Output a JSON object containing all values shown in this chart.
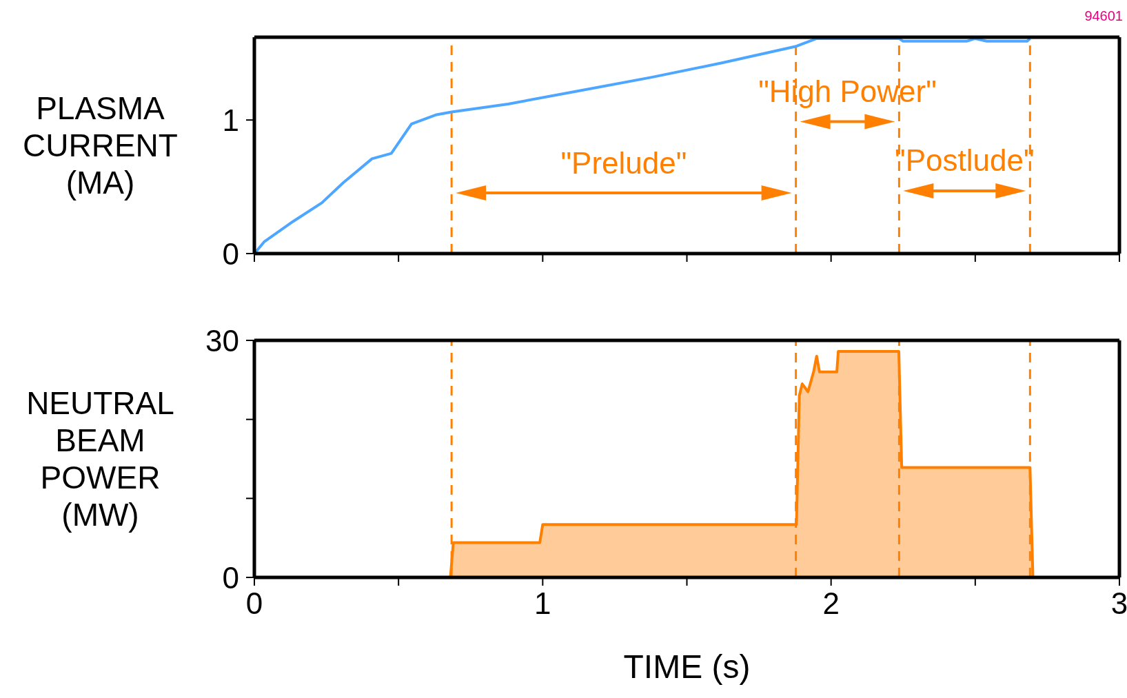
{
  "chart_data": [
    {
      "type": "line",
      "ylabel": "PLASMA CURRENT (MA)",
      "xlim": [
        0,
        3
      ],
      "xticks": [
        0,
        {
          "value": 0.5,
          "label": null
        },
        1,
        {
          "value": 1.5,
          "label": null
        },
        2,
        {
          "value": 2.5,
          "label": null
        },
        3
      ],
      "ylim": [
        0,
        1.62
      ],
      "yticks": [
        0,
        1
      ],
      "tick_labels": "y",
      "grid": false,
      "legend": false,
      "marker": "none",
      "line_style": "solid",
      "series": [
        {
          "color": "#4da6ff",
          "x": [
            0,
            0.035,
            0.134,
            0.234,
            0.308,
            0.408,
            0.475,
            0.545,
            0.632,
            0.684,
            0.88,
            1.13,
            1.378,
            1.627,
            1.876,
            1.95,
            2.236,
            2.25,
            2.47,
            2.5,
            2.54,
            2.68,
            2.69
          ],
          "values": [
            0,
            0.09,
            0.24,
            0.38,
            0.53,
            0.71,
            0.75,
            0.97,
            1.04,
            1.06,
            1.12,
            1.22,
            1.32,
            1.43,
            1.55,
            1.61,
            1.61,
            1.59,
            1.59,
            1.61,
            1.59,
            1.59,
            1.61
          ]
        }
      ],
      "ref_lines": [
        {
          "axis": "x",
          "value": 0.684,
          "color": "#ff8000",
          "line_style": "dashed"
        },
        {
          "axis": "x",
          "value": 1.878,
          "color": "#ff8000",
          "line_style": "dashed"
        },
        {
          "axis": "x",
          "value": 2.236,
          "color": "#ff8000",
          "line_style": "dashed"
        },
        {
          "axis": "x",
          "value": 2.69,
          "color": "#ff8000",
          "line_style": "dashed"
        }
      ],
      "annotations": [
        "94601",
        "\"Prelude\"",
        "\"High Power\"",
        "\"Postlude\""
      ]
    },
    {
      "type": "area",
      "ylabel": "NEUTRAL BEAM POWER (MW)",
      "xlabel": "TIME (s)",
      "xlim": [
        0,
        3
      ],
      "xticks": [
        0,
        {
          "value": 0.5,
          "label": null
        },
        1,
        {
          "value": 1.5,
          "label": null
        },
        2,
        {
          "value": 2.5,
          "label": null
        },
        3
      ],
      "ylim": [
        0,
        30
      ],
      "yticks": [
        0,
        {
          "value": 10,
          "label": null
        },
        {
          "value": 20,
          "label": null
        },
        30
      ],
      "grid": false,
      "legend": false,
      "marker": "none",
      "line_style": "solid",
      "series": [
        {
          "color": "#ff8000",
          "x": [
            0.68,
            0.69,
            0.99,
            1.0,
            1.88,
            1.89,
            1.9,
            1.92,
            1.94,
            1.95,
            1.96,
            2.02,
            2.025,
            2.235,
            2.245,
            2.69,
            2.7
          ],
          "values": [
            0,
            4.4,
            4.4,
            6.7,
            6.7,
            23,
            24.5,
            23.5,
            26.1,
            28,
            26,
            26,
            28.6,
            28.6,
            13.9,
            13.9,
            0
          ]
        }
      ],
      "ref_lines": [
        {
          "axis": "x",
          "value": 0.684,
          "color": "#ff8000",
          "line_style": "dashed"
        },
        {
          "axis": "x",
          "value": 1.878,
          "color": "#ff8000",
          "line_style": "dashed"
        },
        {
          "axis": "x",
          "value": 2.236,
          "color": "#ff8000",
          "line_style": "dashed"
        },
        {
          "axis": "x",
          "value": 2.69,
          "color": "#ff8000",
          "line_style": "dashed"
        }
      ]
    }
  ]
}
